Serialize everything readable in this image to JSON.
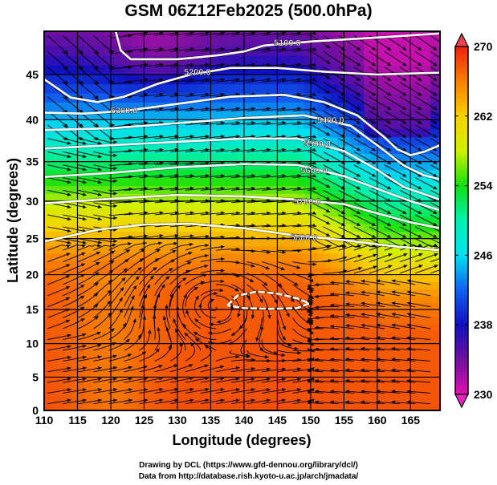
{
  "title": "GSM 06Z12Feb2025 (500.0hPa)",
  "credits": {
    "line1": "Drawing by DCL (https://www.gfd-dennou.org/library/dcl/)",
    "line2": "Data from http://database.rish.kyoto-u.ac.jp/arch/jmadata/"
  },
  "chart_data": {
    "type": "map",
    "projection": "mercator",
    "xlabel": "Longitude (degrees)",
    "ylabel": "Latitude  (degrees)",
    "xlim": [
      110,
      169.4
    ],
    "ylim": [
      0,
      50
    ],
    "xticks": [
      "110",
      "115",
      "120",
      "125",
      "130",
      "135",
      "140",
      "145",
      "150",
      "155",
      "160",
      "165"
    ],
    "yticks": [
      "0",
      "5",
      "10",
      "15",
      "20",
      "25",
      "30",
      "35",
      "40",
      "45"
    ],
    "grid": true,
    "shading": "temperature",
    "colorbar": {
      "ticks": [
        "230",
        "238",
        "246",
        "254",
        "262",
        "270"
      ],
      "range": [
        230,
        270
      ],
      "extend": "both",
      "colors": [
        "#e010b0",
        "#7010a0",
        "#1010c0",
        "#1060f0",
        "#00e0f0",
        "#00f0b0",
        "#10e010",
        "#d0f000",
        "#f8d000",
        "#f88000",
        "#f02010"
      ]
    },
    "contour_color": "#ffffff",
    "contours": [
      {
        "label": "5100.0",
        "label_at": [
          146.5,
          48.3
        ],
        "points": [
          [
            120.5,
            50
          ],
          [
            121.5,
            47.5
          ],
          [
            123,
            46.6
          ],
          [
            130,
            46.6
          ],
          [
            136,
            47
          ],
          [
            140,
            47.4
          ],
          [
            143,
            48
          ],
          [
            150,
            48.4
          ],
          [
            160,
            48.8
          ],
          [
            169.4,
            49.2
          ]
        ]
      },
      {
        "label": "5200.0",
        "label_at": [
          133,
          45.3
        ],
        "points": [
          [
            110,
            44.5
          ],
          [
            114,
            42.5
          ],
          [
            118,
            42
          ],
          [
            122,
            42.6
          ],
          [
            127,
            44
          ],
          [
            132,
            45
          ],
          [
            138,
            45.7
          ],
          [
            145,
            45.7
          ],
          [
            152,
            45.3
          ],
          [
            160,
            45
          ],
          [
            169.4,
            45.2
          ]
        ]
      },
      {
        "label": "5300.0",
        "label_at": [
          122,
          41.1
        ],
        "points": [
          [
            110,
            40.8
          ],
          [
            116,
            40.7
          ],
          [
            122,
            41
          ],
          [
            130,
            41.8
          ],
          [
            138,
            42.6
          ],
          [
            146,
            42.8
          ],
          [
            152,
            42
          ],
          [
            157,
            40.5
          ],
          [
            161,
            38
          ],
          [
            163,
            36.5
          ],
          [
            165,
            35.8
          ],
          [
            167,
            36.2
          ],
          [
            169.4,
            37
          ]
        ]
      },
      {
        "label": "5400.0",
        "label_at": [
          153,
          40
        ],
        "points": [
          [
            110,
            38.8
          ],
          [
            120,
            39
          ],
          [
            130,
            39.6
          ],
          [
            140,
            40.2
          ],
          [
            149,
            40.5
          ],
          [
            156,
            39.3
          ],
          [
            160,
            37
          ],
          [
            164,
            34.5
          ],
          [
            167,
            33.3
          ],
          [
            169.4,
            32.8
          ]
        ]
      },
      {
        "label": "5500.0",
        "label_at": [
          151,
          37.2
        ],
        "points": [
          [
            110,
            36.6
          ],
          [
            120,
            37
          ],
          [
            130,
            37.4
          ],
          [
            140,
            37.8
          ],
          [
            148,
            37.8
          ],
          [
            155,
            36.3
          ],
          [
            160,
            34
          ],
          [
            164,
            31.8
          ],
          [
            169.4,
            30.2
          ]
        ]
      },
      {
        "label": "5600.0",
        "label_at": [
          150.5,
          33.9
        ],
        "points": [
          [
            110,
            33.1
          ],
          [
            120,
            33.6
          ],
          [
            130,
            34.3
          ],
          [
            140,
            34.7
          ],
          [
            148,
            34.6
          ],
          [
            155,
            33.2
          ],
          [
            160,
            31.6
          ],
          [
            165,
            30
          ],
          [
            169.4,
            28.8
          ]
        ]
      },
      {
        "label": "5700.0",
        "label_at": [
          149.5,
          30
        ],
        "points": [
          [
            110,
            29.7
          ],
          [
            120,
            30.3
          ],
          [
            130,
            30.8
          ],
          [
            140,
            30.6
          ],
          [
            148,
            30.2
          ],
          [
            155,
            29.6
          ],
          [
            160,
            28.4
          ],
          [
            165,
            27.2
          ],
          [
            169.4,
            26.4
          ]
        ]
      },
      {
        "label": "5800.0",
        "label_at": [
          149,
          25.2
        ],
        "points": [
          [
            110,
            24.6
          ],
          [
            118,
            26.2
          ],
          [
            125,
            26.9
          ],
          [
            132,
            27
          ],
          [
            140,
            26.4
          ],
          [
            148,
            25.4
          ],
          [
            155,
            24.8
          ],
          [
            162,
            24
          ],
          [
            169.4,
            23.4
          ]
        ]
      },
      {
        "label": "",
        "label_at": null,
        "points": [
          [
            137.5,
            15.6
          ],
          [
            139,
            17
          ],
          [
            142,
            17.6
          ],
          [
            145,
            17.3
          ],
          [
            148,
            16.6
          ],
          [
            149.8,
            15.9
          ],
          [
            148,
            15.2
          ],
          [
            144,
            15.1
          ],
          [
            140,
            15.2
          ],
          [
            137.5,
            15.6
          ]
        ]
      }
    ]
  }
}
